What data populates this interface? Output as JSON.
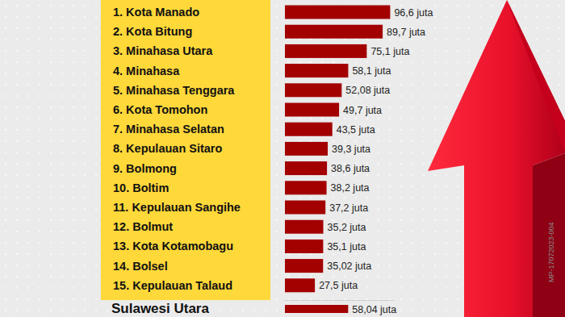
{
  "chart_data": {
    "type": "bar",
    "orientation": "horizontal",
    "categories": [
      "1. Kota Manado",
      "2. Kota Bitung",
      "3. Minahasa Utara",
      "4. Minahasa",
      "5. Minahasa Tenggara",
      "6. Kota Tomohon",
      "7. Minahasa Selatan",
      "8. Kepulauan Sitaro",
      "9. Bolmong",
      "10. Boltim",
      "11. Kepulauan Sangihe",
      "12. Bolmut",
      "13. Kota Kotamobagu",
      "14. Bolsel",
      "15. Kepulauan Talaud",
      "Sulawesi Utara"
    ],
    "values": [
      96.6,
      89.7,
      75.1,
      58.1,
      52.08,
      49.7,
      43.5,
      39.3,
      38.6,
      38.2,
      37.2,
      35.2,
      35.1,
      35.02,
      27.5,
      58.04
    ],
    "value_labels": [
      "96,6 juta",
      "89,7 juta",
      "75,1 juta",
      "58,1 juta",
      "52,08 juta",
      "49,7 juta",
      "43,5 juta",
      "39,3 juta",
      "38,6 juta",
      "38,2 juta",
      "37,2 juta",
      "35,2 juta",
      "35,1 juta",
      "35,02 juta",
      "27,5 juta",
      "58,04 juta"
    ],
    "color": "#a30000",
    "xlim": [
      0,
      100
    ],
    "data_labels": true,
    "tick_labels": false,
    "grid": false,
    "annotation": "MP-17072023-004"
  }
}
